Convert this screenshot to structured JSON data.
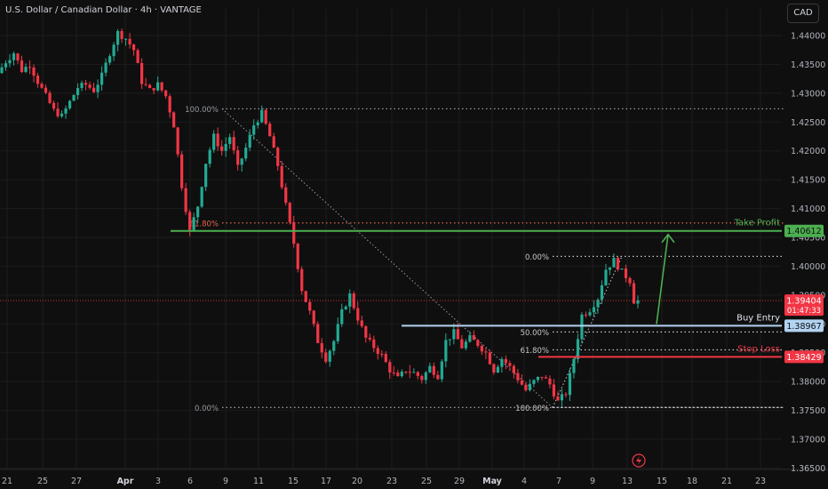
{
  "header": {
    "title": "U.S. Dollar / Canadian Dollar · 4h · VANTAGE",
    "currency": "CAD"
  },
  "colors": {
    "bg": "#0f0f0f",
    "up": "#22ab94",
    "down": "#f23645",
    "grid": "#1c1c1c",
    "axis_text": "#b2b5be",
    "fib": "#9598a1",
    "fib_red": "#e2654d",
    "take_profit": "#4caf50",
    "stop_loss": "#f23645",
    "entry": "#b2d3f0",
    "projection_arrow": "#4caf50"
  },
  "chart_data": {
    "type": "candlestick",
    "y_ticks": [
      "1.44000",
      "1.43500",
      "1.43000",
      "1.42500",
      "1.42000",
      "1.41500",
      "1.41000",
      "1.40500",
      "1.40000",
      "1.39500",
      "1.39000",
      "1.38500",
      "1.38000",
      "1.37500",
      "1.37000",
      "1.36500"
    ],
    "y_tick_values": [
      1.44,
      1.435,
      1.43,
      1.425,
      1.42,
      1.415,
      1.41,
      1.405,
      1.4,
      1.395,
      1.39,
      1.385,
      1.38,
      1.375,
      1.37,
      1.365
    ],
    "ylim": [
      1.365,
      1.4415
    ],
    "x_ticks": [
      "21",
      "25",
      "27",
      "Apr",
      "3",
      "6",
      "9",
      "11",
      "15",
      "17",
      "20",
      "23",
      "25",
      "29",
      "May",
      "4",
      "7",
      "9",
      "13",
      "15",
      "18",
      "21",
      "23"
    ],
    "bold_x_ticks": [
      "Apr",
      "May"
    ],
    "price_path": [
      [
        0,
        1.4335
      ],
      [
        2,
        1.4355
      ],
      [
        4,
        1.437
      ],
      [
        6,
        1.434
      ],
      [
        8,
        1.435
      ],
      [
        10,
        1.432
      ],
      [
        12,
        1.4295
      ],
      [
        14,
        1.427
      ],
      [
        16,
        1.426
      ],
      [
        18,
        1.4285
      ],
      [
        20,
        1.431
      ],
      [
        22,
        1.4315
      ],
      [
        24,
        1.4305
      ],
      [
        26,
        1.433
      ],
      [
        28,
        1.437
      ],
      [
        30,
        1.4405
      ],
      [
        32,
        1.4395
      ],
      [
        34,
        1.4375
      ],
      [
        36,
        1.432
      ],
      [
        38,
        1.4305
      ],
      [
        40,
        1.4315
      ],
      [
        42,
        1.4295
      ],
      [
        44,
        1.4245
      ],
      [
        46,
        1.414
      ],
      [
        48,
        1.406
      ],
      [
        50,
        1.4105
      ],
      [
        52,
        1.418
      ],
      [
        54,
        1.4225
      ],
      [
        56,
        1.42
      ],
      [
        58,
        1.4225
      ],
      [
        60,
        1.417
      ],
      [
        62,
        1.4205
      ],
      [
        64,
        1.4245
      ],
      [
        66,
        1.4265
      ],
      [
        68,
        1.4225
      ],
      [
        70,
        1.4175
      ],
      [
        72,
        1.4105
      ],
      [
        74,
        1.404
      ],
      [
        76,
        1.396
      ],
      [
        78,
        1.392
      ],
      [
        80,
        1.387
      ],
      [
        82,
        1.384
      ],
      [
        84,
        1.387
      ],
      [
        86,
        1.392
      ],
      [
        88,
        1.395
      ],
      [
        90,
        1.391
      ],
      [
        92,
        1.3875
      ],
      [
        94,
        1.386
      ],
      [
        96,
        1.3845
      ],
      [
        98,
        1.382
      ],
      [
        100,
        1.3805
      ],
      [
        102,
        1.382
      ],
      [
        104,
        1.3815
      ],
      [
        106,
        1.3805
      ],
      [
        108,
        1.3825
      ],
      [
        110,
        1.381
      ],
      [
        112,
        1.387
      ],
      [
        114,
        1.3885
      ],
      [
        116,
        1.386
      ],
      [
        118,
        1.3875
      ],
      [
        120,
        1.3865
      ],
      [
        122,
        1.385
      ],
      [
        124,
        1.382
      ],
      [
        126,
        1.384
      ],
      [
        128,
        1.3825
      ],
      [
        130,
        1.3805
      ],
      [
        132,
        1.3785
      ],
      [
        134,
        1.38
      ],
      [
        136,
        1.381
      ],
      [
        138,
        1.3795
      ],
      [
        140,
        1.3765
      ],
      [
        142,
        1.378
      ],
      [
        144,
        1.384
      ],
      [
        146,
        1.3915
      ],
      [
        148,
        1.3925
      ],
      [
        150,
        1.3945
      ],
      [
        152,
        1.3995
      ],
      [
        154,
        1.401
      ],
      [
        156,
        1.399
      ],
      [
        158,
        1.3975
      ],
      [
        159,
        1.394
      ]
    ],
    "x_domain": [
      0,
      159
    ],
    "fib_upper": {
      "levels": [
        {
          "label": "100.00%",
          "price": 1.4273
        },
        {
          "label": "61.80%",
          "price": 1.4075
        },
        {
          "label": "0.00%",
          "price": 1.3755
        }
      ]
    },
    "fib_lower": {
      "levels": [
        {
          "label": "0.00%",
          "price": 1.4017
        },
        {
          "label": "50.00%",
          "price": 1.3886
        },
        {
          "label": "61.80%",
          "price": 1.3855
        },
        {
          "label": "100.00%",
          "price": 1.3755
        }
      ]
    },
    "take_profit": {
      "label": "Take Profit",
      "price": 1.40612,
      "price_label": "1.40612"
    },
    "buy_entry": {
      "label": "Buy Entry",
      "price": 1.38967,
      "price_label": "1.38967"
    },
    "stop_loss": {
      "label": "Stop Loss",
      "price": 1.38429,
      "price_label": "1.38429"
    },
    "last_price": {
      "price": 1.39404,
      "price_label": "1.39404",
      "countdown": "01:47:33"
    }
  }
}
